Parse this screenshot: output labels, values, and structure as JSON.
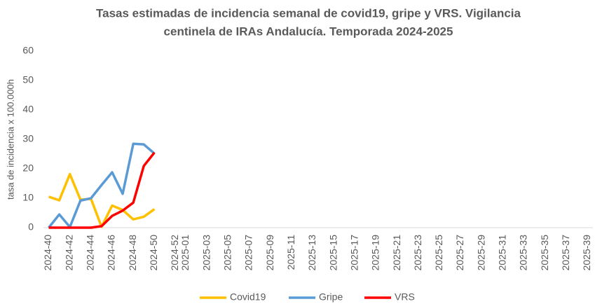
{
  "chart_data": {
    "type": "line",
    "title": [
      "Tasas estimadas de incidencia semanal de covid19, gripe y VRS. Vigilancia",
      "centinela de IRAs Andalucía. Temporada 2024-2025"
    ],
    "y_label": "tasa de incidencia x 100.000h",
    "categories": [
      "2024-40",
      null,
      "2024-42",
      null,
      "2024-44",
      null,
      "2024-46",
      null,
      "2024-48",
      null,
      "2024-50",
      null,
      "2024-52",
      "2025-01",
      null,
      "2025-03",
      null,
      "2025-05",
      null,
      "2025-07",
      null,
      "2025-09",
      null,
      "2025-11",
      null,
      "2025-13",
      null,
      "2025-15",
      null,
      "2025-17",
      null,
      "2025-19",
      null,
      "2025-21",
      null,
      "2025-23",
      null,
      "2025-25",
      null,
      "2025-27",
      null,
      "2025-29",
      null,
      "2025-31",
      null,
      "2025-33",
      null,
      "2025-35",
      null,
      "2025-37",
      null,
      "2025-39"
    ],
    "series": [
      {
        "name": "Covid19",
        "color": "#ffc000",
        "values": [
          10.5,
          9.3,
          18.2,
          9.5,
          9.8,
          0.3,
          7.5,
          6,
          2.8,
          3.7,
          6.3,
          null,
          null,
          null,
          null,
          null,
          null,
          null,
          null,
          null,
          null,
          null,
          null,
          null,
          null,
          null,
          null,
          null,
          null,
          null,
          null,
          null,
          null,
          null,
          null,
          null,
          null,
          null,
          null,
          null,
          null,
          null,
          null,
          null,
          null,
          null,
          null,
          null,
          null,
          null,
          null,
          null
        ]
      },
      {
        "name": "Gripe",
        "color": "#5b9bd5",
        "values": [
          0,
          4.5,
          0.2,
          9.2,
          10,
          14.5,
          18.8,
          11.5,
          28.5,
          28.3,
          25.2,
          null,
          null,
          null,
          null,
          null,
          null,
          null,
          null,
          null,
          null,
          null,
          null,
          null,
          null,
          null,
          null,
          null,
          null,
          null,
          null,
          null,
          null,
          null,
          null,
          null,
          null,
          null,
          null,
          null,
          null,
          null,
          null,
          null,
          null,
          null,
          null,
          null,
          null,
          null,
          null,
          null
        ]
      },
      {
        "name": "VRS",
        "color": "#ff0000",
        "values": [
          0,
          0,
          0,
          0,
          0,
          0.5,
          4,
          5.8,
          8.5,
          21,
          25.5,
          null,
          null,
          null,
          null,
          null,
          null,
          null,
          null,
          null,
          null,
          null,
          null,
          null,
          null,
          null,
          null,
          null,
          null,
          null,
          null,
          null,
          null,
          null,
          null,
          null,
          null,
          null,
          null,
          null,
          null,
          null,
          null,
          null,
          null,
          null,
          null,
          null,
          null,
          null,
          null,
          null
        ]
      }
    ],
    "ylim": [
      0,
      60
    ],
    "yticks": [
      0,
      10,
      20,
      30,
      40,
      50,
      60
    ],
    "grid": false,
    "legend": "bottom"
  }
}
